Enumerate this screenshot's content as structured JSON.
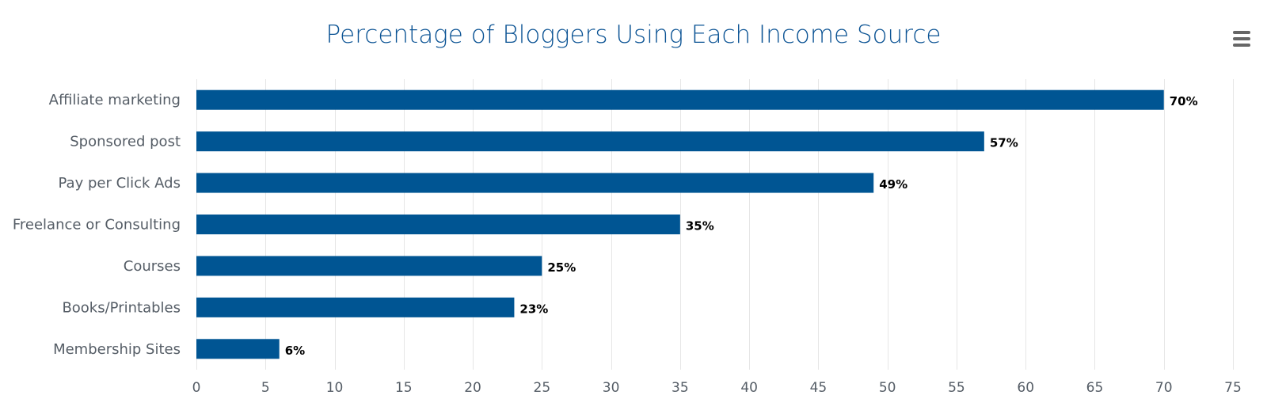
{
  "chart_data": {
    "type": "bar",
    "orientation": "horizontal",
    "title": "Percentage of Bloggers Using Each Income Source",
    "xlabel": "",
    "ylabel": "",
    "categories": [
      "Affiliate marketing",
      "Sponsored post",
      "Pay per Click Ads",
      "Freelance or Consulting",
      "Courses",
      "Books/Printables",
      "Membership Sites"
    ],
    "values": [
      70,
      57,
      49,
      35,
      25,
      23,
      6
    ],
    "data_labels": [
      "70%",
      "57%",
      "49%",
      "35%",
      "25%",
      "23%",
      "6%"
    ],
    "xlim": [
      0,
      75
    ],
    "x_ticks": [
      0,
      5,
      10,
      15,
      20,
      25,
      30,
      35,
      40,
      45,
      50,
      55,
      60,
      65,
      70,
      75
    ],
    "grid": true,
    "legend": "none",
    "bar_color": "#005593",
    "title_color": "#0b5394"
  },
  "toolbar": {
    "menu_icon": "hamburger-menu-icon"
  }
}
